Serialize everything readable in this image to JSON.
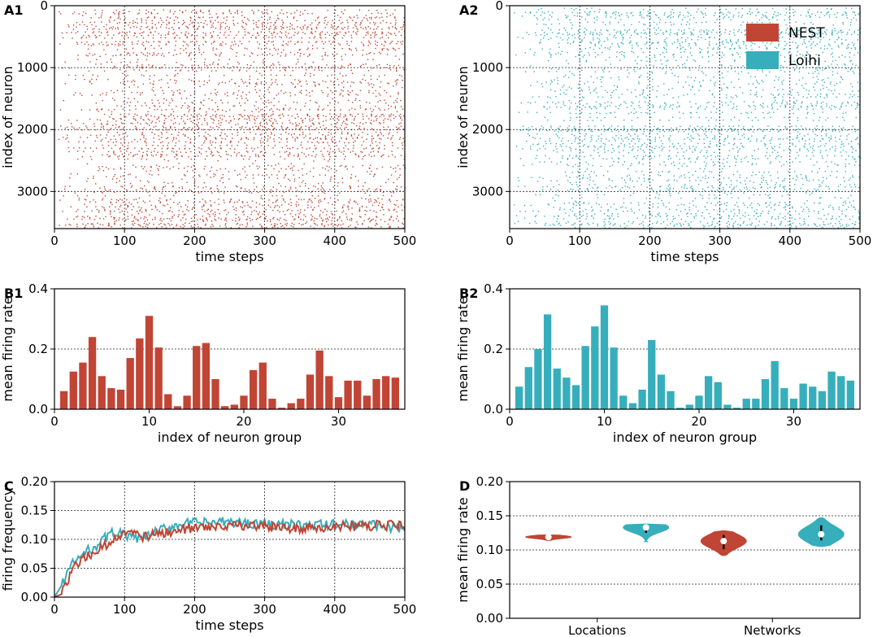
{
  "colors": {
    "nest": "#c04535",
    "loihi": "#37aebb",
    "grid": "#222222"
  },
  "chart_data": [
    {
      "id": "A1",
      "type": "scatter",
      "panel_label": "A1",
      "xlabel": "time steps",
      "ylabel": "index of neuron",
      "xlim": [
        0,
        500
      ],
      "ylim": [
        3600,
        0
      ],
      "xticks": [
        "0",
        "100",
        "200",
        "300",
        "400",
        "500"
      ],
      "yticks": [
        "0",
        "1000",
        "2000",
        "3000"
      ],
      "series_color": "#c04535",
      "grid": true
    },
    {
      "id": "A2",
      "type": "scatter",
      "panel_label": "A2",
      "xlabel": "time steps",
      "ylabel": "index of neuron",
      "xlim": [
        0,
        500
      ],
      "ylim": [
        3600,
        0
      ],
      "xticks": [
        "0",
        "100",
        "200",
        "300",
        "400",
        "500"
      ],
      "yticks": [
        "0",
        "1000",
        "2000",
        "3000"
      ],
      "series_color": "#37aebb",
      "grid": true,
      "legend": {
        "position": "top-right",
        "entries": [
          {
            "name": "NEST",
            "color": "#c04535"
          },
          {
            "name": "Loihi",
            "color": "#37aebb"
          }
        ]
      }
    },
    {
      "id": "B1",
      "type": "bar",
      "panel_label": "B1",
      "xlabel": "index of neuron group",
      "ylabel": "mean firing rate",
      "xlim": [
        0,
        37
      ],
      "ylim": [
        0,
        0.4
      ],
      "xticks": [
        "0",
        "10",
        "20",
        "30"
      ],
      "yticks": [
        "0.0",
        "0.2",
        "0.4"
      ],
      "color": "#c04535",
      "grid": true,
      "categories": [
        1,
        2,
        3,
        4,
        5,
        6,
        7,
        8,
        9,
        10,
        11,
        12,
        13,
        14,
        15,
        16,
        17,
        18,
        19,
        20,
        21,
        22,
        23,
        24,
        25,
        26,
        27,
        28,
        29,
        30,
        31,
        32,
        33,
        34,
        35,
        36
      ],
      "values": [
        0.06,
        0.125,
        0.155,
        0.24,
        0.11,
        0.07,
        0.065,
        0.17,
        0.235,
        0.31,
        0.205,
        0.05,
        0.01,
        0.045,
        0.21,
        0.22,
        0.1,
        0.01,
        0.015,
        0.045,
        0.13,
        0.155,
        0.035,
        0.005,
        0.02,
        0.035,
        0.115,
        0.195,
        0.11,
        0.04,
        0.095,
        0.095,
        0.045,
        0.1,
        0.11,
        0.105
      ]
    },
    {
      "id": "B2",
      "type": "bar",
      "panel_label": "B2",
      "xlabel": "index of neuron group",
      "ylabel": "mean firing rate",
      "xlim": [
        0,
        37
      ],
      "ylim": [
        0,
        0.4
      ],
      "xticks": [
        "0",
        "10",
        "20",
        "30"
      ],
      "yticks": [
        "0.0",
        "0.2",
        "0.4"
      ],
      "color": "#37aebb",
      "grid": true,
      "categories": [
        1,
        2,
        3,
        4,
        5,
        6,
        7,
        8,
        9,
        10,
        11,
        12,
        13,
        14,
        15,
        16,
        17,
        18,
        19,
        20,
        21,
        22,
        23,
        24,
        25,
        26,
        27,
        28,
        29,
        30,
        31,
        32,
        33,
        34,
        35,
        36
      ],
      "values": [
        0.075,
        0.14,
        0.2,
        0.315,
        0.135,
        0.105,
        0.08,
        0.21,
        0.275,
        0.345,
        0.205,
        0.045,
        0.02,
        0.065,
        0.23,
        0.115,
        0.06,
        0.005,
        0.015,
        0.045,
        0.11,
        0.09,
        0.015,
        0.005,
        0.035,
        0.035,
        0.1,
        0.16,
        0.07,
        0.035,
        0.085,
        0.075,
        0.06,
        0.125,
        0.11,
        0.095
      ]
    },
    {
      "id": "C",
      "type": "line",
      "panel_label": "C",
      "xlabel": "time steps",
      "ylabel": "firing frequency",
      "xlim": [
        0,
        500
      ],
      "ylim": [
        0,
        0.2
      ],
      "xticks": [
        "0",
        "100",
        "200",
        "300",
        "400",
        "500"
      ],
      "yticks": [
        "0.00",
        "0.05",
        "0.10",
        "0.15",
        "0.20"
      ],
      "grid": true,
      "series": [
        {
          "name": "Loihi",
          "color": "#37aebb",
          "x": [
            0,
            10,
            20,
            30,
            40,
            50,
            60,
            70,
            80,
            90,
            100,
            120,
            140,
            160,
            180,
            200,
            250,
            300,
            350,
            400,
            450,
            500
          ],
          "y": [
            0,
            0.02,
            0.048,
            0.063,
            0.073,
            0.082,
            0.09,
            0.1,
            0.11,
            0.113,
            0.107,
            0.1,
            0.11,
            0.12,
            0.127,
            0.128,
            0.13,
            0.127,
            0.124,
            0.125,
            0.127,
            0.117
          ]
        },
        {
          "name": "NEST",
          "color": "#c04535",
          "x": [
            0,
            10,
            20,
            30,
            40,
            50,
            60,
            70,
            80,
            90,
            100,
            120,
            140,
            160,
            180,
            200,
            250,
            300,
            350,
            400,
            450,
            500
          ],
          "y": [
            0,
            0.005,
            0.03,
            0.055,
            0.065,
            0.072,
            0.078,
            0.087,
            0.096,
            0.103,
            0.112,
            0.105,
            0.108,
            0.112,
            0.118,
            0.121,
            0.125,
            0.121,
            0.119,
            0.122,
            0.124,
            0.124
          ]
        }
      ]
    },
    {
      "id": "D",
      "type": "violin",
      "panel_label": "D",
      "xlabel": "",
      "ylabel": "mean firing rate",
      "ylim": [
        0,
        0.2
      ],
      "yticks": [
        "0.00",
        "0.05",
        "0.10",
        "0.15",
        "0.20"
      ],
      "grid": true,
      "categories": [
        "Locations",
        "Networks"
      ],
      "violins": [
        {
          "group": "Locations",
          "series": "NEST",
          "color": "#c04535",
          "median": 0.119,
          "q1": 0.117,
          "q3": 0.121,
          "min": 0.114,
          "max": 0.122
        },
        {
          "group": "Locations",
          "series": "Loihi",
          "color": "#37aebb",
          "median": 0.133,
          "q1": 0.125,
          "q3": 0.136,
          "min": 0.112,
          "max": 0.138
        },
        {
          "group": "Networks",
          "series": "NEST",
          "color": "#c04535",
          "median": 0.113,
          "q1": 0.101,
          "q3": 0.122,
          "min": 0.092,
          "max": 0.128
        },
        {
          "group": "Networks",
          "series": "Loihi",
          "color": "#37aebb",
          "median": 0.123,
          "q1": 0.114,
          "q3": 0.136,
          "min": 0.105,
          "max": 0.147
        }
      ]
    }
  ]
}
